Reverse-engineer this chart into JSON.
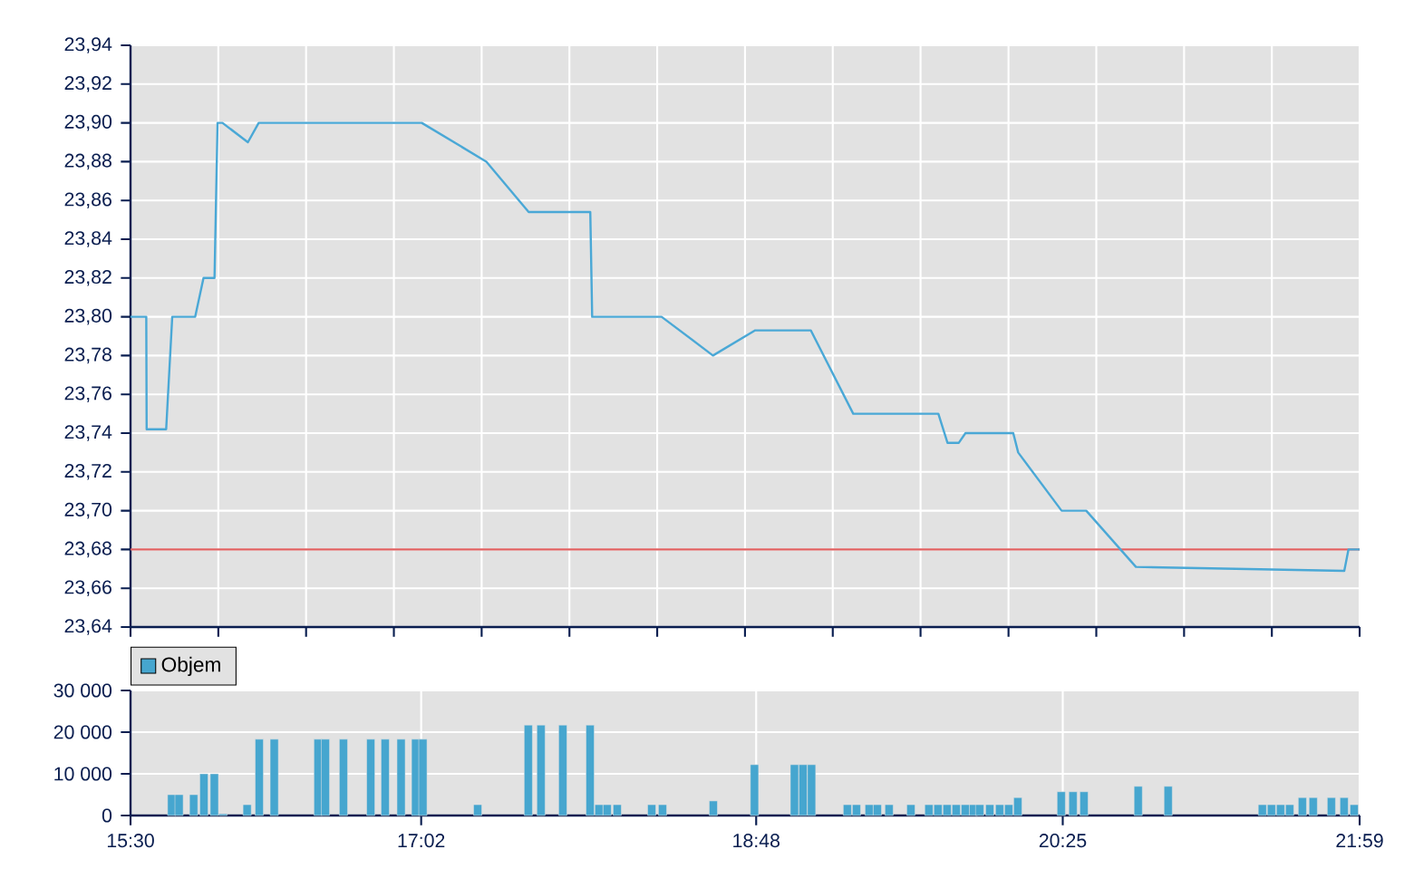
{
  "chart_data": [
    {
      "type": "line",
      "color": "#4aa8d6",
      "grid": true,
      "tick_labels": "y",
      "x": [
        15.5,
        15.583,
        15.585,
        15.688,
        15.72,
        15.841,
        15.885,
        15.943,
        15.959,
        15.985,
        16.119,
        16.176,
        17.036,
        17.377,
        17.6,
        17.925,
        17.935,
        18.301,
        18.572,
        18.795,
        19.088,
        19.312,
        19.761,
        19.809,
        19.869,
        19.904,
        20.156,
        20.182,
        20.411,
        20.541,
        20.803,
        21.902,
        21.924,
        21.983
      ],
      "values": [
        23.8,
        23.8,
        23.742,
        23.742,
        23.8,
        23.8,
        23.82,
        23.82,
        23.9,
        23.9,
        23.89,
        23.9,
        23.9,
        23.88,
        23.854,
        23.854,
        23.8,
        23.8,
        23.78,
        23.793,
        23.793,
        23.75,
        23.75,
        23.735,
        23.735,
        23.74,
        23.74,
        23.73,
        23.7,
        23.7,
        23.671,
        23.669,
        23.68,
        23.68
      ],
      "xlim": [
        15.5,
        21.983
      ],
      "xticks": [
        {
          "value": 15.5,
          "label": null
        },
        {
          "value": 15.963,
          "label": null
        },
        {
          "value": 16.426,
          "label": null
        },
        {
          "value": 16.889,
          "label": null
        },
        {
          "value": 17.352,
          "label": null
        },
        {
          "value": 17.815,
          "label": null
        },
        {
          "value": 18.278,
          "label": null
        },
        {
          "value": 18.741,
          "label": null
        },
        {
          "value": 19.204,
          "label": null
        },
        {
          "value": 19.667,
          "label": null
        },
        {
          "value": 20.131,
          "label": null
        },
        {
          "value": 20.594,
          "label": null
        },
        {
          "value": 21.057,
          "label": null
        },
        {
          "value": 21.52,
          "label": null
        },
        {
          "value": 21.983,
          "label": null
        }
      ],
      "ylim": [
        23.64,
        23.94
      ],
      "yticks": [
        {
          "value": 23.64,
          "label": "23,64"
        },
        {
          "value": 23.66,
          "label": "23,66"
        },
        {
          "value": 23.68,
          "label": "23,68"
        },
        {
          "value": 23.7,
          "label": "23,70"
        },
        {
          "value": 23.72,
          "label": "23,72"
        },
        {
          "value": 23.74,
          "label": "23,74"
        },
        {
          "value": 23.76,
          "label": "23,76"
        },
        {
          "value": 23.78,
          "label": "23,78"
        },
        {
          "value": 23.8,
          "label": "23,80"
        },
        {
          "value": 23.82,
          "label": "23,82"
        },
        {
          "value": 23.84,
          "label": "23,84"
        },
        {
          "value": 23.86,
          "label": "23,86"
        },
        {
          "value": 23.88,
          "label": "23,88"
        },
        {
          "value": 23.9,
          "label": "23,90"
        },
        {
          "value": 23.92,
          "label": "23,92"
        },
        {
          "value": 23.94,
          "label": "23,94"
        }
      ],
      "ref_lines": [
        {
          "axis": "y",
          "value": 23.68,
          "color": "#e06060"
        }
      ]
    },
    {
      "type": "bar",
      "grid": true,
      "legend": "top left",
      "series": [
        {
          "name": "Objem",
          "color": "#46a6cf",
          "x": [
            15.717,
            15.756,
            15.833,
            15.887,
            15.942,
            15.988,
            16.115,
            16.179,
            16.258,
            16.489,
            16.528,
            16.623,
            16.767,
            16.843,
            16.927,
            17.004,
            17.042,
            17.331,
            17.598,
            17.665,
            17.78,
            17.924,
            17.971,
            18.014,
            18.067,
            18.249,
            18.306,
            18.574,
            18.791,
            19.002,
            19.047,
            19.092,
            19.281,
            19.329,
            19.396,
            19.439,
            19.501,
            19.616,
            19.711,
            19.759,
            19.807,
            19.855,
            19.903,
            19.946,
            19.979,
            20.032,
            20.084,
            20.132,
            20.18,
            20.409,
            20.471,
            20.529,
            20.815,
            20.973,
            21.47,
            21.518,
            21.566,
            21.614,
            21.681,
            21.738,
            21.834,
            21.901,
            21.954
          ],
          "values": [
            5000,
            5000,
            5000,
            10000,
            10000,
            400,
            2600,
            18300,
            18300,
            18300,
            18300,
            18300,
            18300,
            18300,
            18300,
            18300,
            18300,
            2600,
            21700,
            21700,
            21700,
            21700,
            2600,
            2600,
            2600,
            2600,
            2600,
            3500,
            12200,
            12200,
            12200,
            12200,
            2600,
            2600,
            2600,
            2600,
            2600,
            2600,
            2600,
            2600,
            2600,
            2600,
            2600,
            2600,
            2600,
            2600,
            2600,
            2600,
            4300,
            5700,
            5700,
            5700,
            7000,
            7000,
            2600,
            2600,
            2600,
            2600,
            4300,
            4300,
            4300,
            4300,
            2600
          ]
        }
      ],
      "xlim": [
        15.5,
        21.983
      ],
      "xticks": [
        {
          "value": 15.5,
          "label": "15:30"
        },
        {
          "value": 17.033,
          "label": "17:02"
        },
        {
          "value": 18.8,
          "label": "18:48"
        },
        {
          "value": 20.417,
          "label": "20:25"
        },
        {
          "value": 21.983,
          "label": "21:59"
        }
      ],
      "ylim": [
        0,
        30000
      ],
      "yticks": [
        0,
        {
          "value": 10000,
          "label": "10 000"
        },
        {
          "value": 20000,
          "label": "20 000"
        },
        {
          "value": 30000,
          "label": "30 000"
        }
      ]
    }
  ]
}
